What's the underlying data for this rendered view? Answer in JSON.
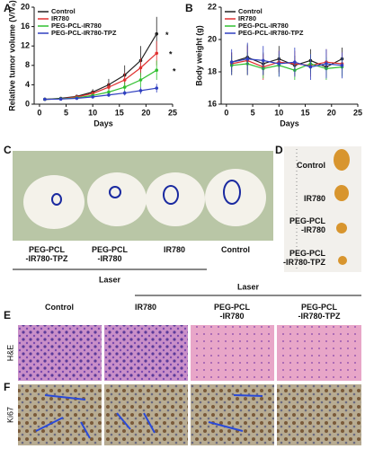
{
  "chart_data": [
    {
      "type": "line",
      "label": "A",
      "xlabel": "Days",
      "ylabel": "Relative tumor volume (V/V₀)",
      "x": [
        1,
        4,
        7,
        10,
        13,
        16,
        19,
        22
      ],
      "xlim": [
        -1,
        25
      ],
      "xticks": [
        0,
        5,
        10,
        15,
        20,
        25
      ],
      "ylim": [
        0,
        20
      ],
      "yticks": [
        0,
        4,
        8,
        12,
        16,
        20
      ],
      "legend": "upper left",
      "annotations": [
        "*",
        "*",
        "*"
      ],
      "series": [
        {
          "name": "Control",
          "color": "#222222",
          "values": [
            1,
            1.2,
            1.6,
            2.5,
            4,
            6,
            9,
            14.5
          ],
          "errors": [
            0.1,
            0.2,
            0.3,
            0.6,
            1.2,
            2,
            3,
            3.5
          ]
        },
        {
          "name": "IR780",
          "color": "#e03030",
          "values": [
            1,
            1.1,
            1.5,
            2.2,
            3.5,
            5,
            7.5,
            10.5
          ],
          "errors": [
            0.1,
            0.2,
            0.3,
            0.5,
            0.9,
            1.5,
            2,
            2.5
          ]
        },
        {
          "name": "PEG-PCL-IR780",
          "color": "#30c030",
          "values": [
            1,
            1.1,
            1.3,
            1.8,
            2.5,
            3.5,
            5,
            7
          ],
          "errors": [
            0.1,
            0.15,
            0.2,
            0.4,
            0.6,
            1,
            1.5,
            2
          ]
        },
        {
          "name": "PEG-PCL-IR780-TPZ",
          "color": "#3040c0",
          "values": [
            1,
            1.05,
            1.2,
            1.5,
            1.9,
            2.3,
            2.8,
            3.3
          ],
          "errors": [
            0.1,
            0.1,
            0.15,
            0.3,
            0.4,
            0.5,
            0.7,
            0.9
          ]
        }
      ]
    },
    {
      "type": "line",
      "label": "B",
      "xlabel": "Days",
      "ylabel": "Body weight (g)",
      "x": [
        1,
        4,
        7,
        10,
        13,
        16,
        19,
        22
      ],
      "xlim": [
        -1,
        25
      ],
      "xticks": [
        0,
        5,
        10,
        15,
        20,
        25
      ],
      "ylim": [
        16,
        22
      ],
      "yticks": [
        16,
        18,
        20,
        22
      ],
      "legend": "upper left",
      "series": [
        {
          "name": "Control",
          "color": "#222222",
          "values": [
            18.6,
            18.9,
            18.5,
            18.8,
            18.4,
            18.7,
            18.3,
            18.8
          ],
          "errors": [
            0.6,
            0.8,
            0.7,
            0.8,
            0.6,
            0.7,
            0.6,
            0.7
          ]
        },
        {
          "name": "IR780",
          "color": "#e03030",
          "values": [
            18.5,
            18.7,
            18.3,
            18.6,
            18.5,
            18.4,
            18.6,
            18.5
          ],
          "errors": [
            0.7,
            0.9,
            0.8,
            0.7,
            0.8,
            0.7,
            0.8,
            0.7
          ]
        },
        {
          "name": "PEG-PCL-IR780",
          "color": "#30c030",
          "values": [
            18.4,
            18.5,
            18.2,
            18.4,
            18.1,
            18.5,
            18.2,
            18.3
          ],
          "errors": [
            0.6,
            0.7,
            0.6,
            0.7,
            0.6,
            0.6,
            0.7,
            0.6
          ]
        },
        {
          "name": "PEG-PCL-IR780-TPZ",
          "color": "#3040c0",
          "values": [
            18.6,
            18.8,
            18.7,
            18.5,
            18.6,
            18.3,
            18.5,
            18.4
          ],
          "errors": [
            0.8,
            1,
            0.9,
            0.8,
            0.9,
            0.8,
            0.9,
            0.8
          ]
        }
      ]
    }
  ],
  "panel_c": {
    "label": "C",
    "mice": [
      [
        "PEG-PCL",
        "-IR780-TPZ"
      ],
      [
        "PEG-PCL",
        "-IR780"
      ],
      [
        "IR780"
      ],
      [
        "Control"
      ]
    ],
    "laser": "Laser"
  },
  "panel_d": {
    "label": "D",
    "tumors": [
      [
        "Control"
      ],
      [
        "IR780"
      ],
      [
        "PEG-PCL",
        "-IR780"
      ],
      [
        "PEG-PCL",
        "-IR780-TPZ"
      ]
    ]
  },
  "panel_e": {
    "label": "E",
    "laser": "Laser",
    "columns": [
      [
        "Control"
      ],
      [
        "IR780"
      ],
      [
        "PEG-PCL",
        "-IR780"
      ],
      [
        "PEG-PCL",
        "-IR780-TPZ"
      ]
    ],
    "row": "H&E"
  },
  "panel_f": {
    "label": "F",
    "row": "Ki67"
  }
}
